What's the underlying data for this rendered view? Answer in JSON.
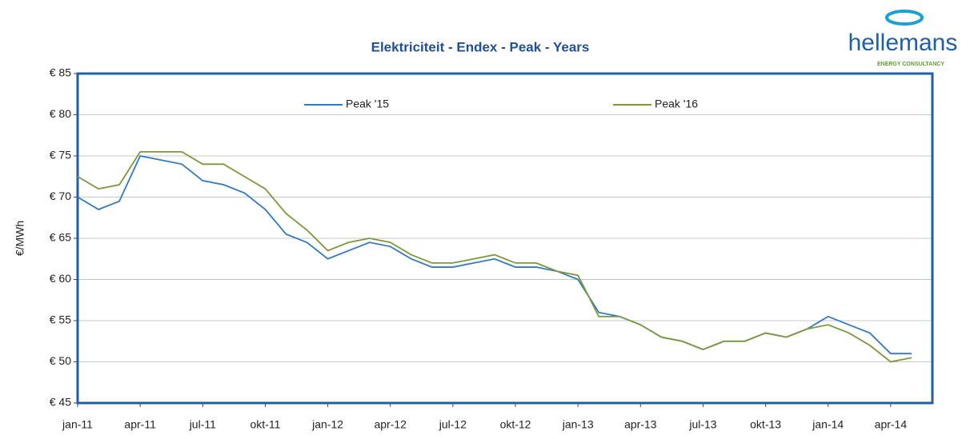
{
  "logo": {
    "name": "hellemans",
    "tagline": "ENERGY CONSULTANCY"
  },
  "chart_data": {
    "type": "line",
    "title": "Elektriciteit - Endex - Peak - Years",
    "y_label": "€/MWh",
    "categories": [
      "jan-11",
      null,
      null,
      "apr-11",
      null,
      null,
      "jul-11",
      null,
      null,
      "okt-11",
      null,
      null,
      "jan-12",
      null,
      null,
      "apr-12",
      null,
      null,
      "jul-12",
      null,
      null,
      "okt-12",
      null,
      null,
      "jan-13",
      null,
      null,
      "apr-13",
      null,
      null,
      "jul-13",
      null,
      null,
      "okt-13",
      null,
      null,
      "jan-14",
      null,
      null,
      "apr-14",
      null
    ],
    "series": [
      {
        "name": "Peak '15",
        "color": "#2e7bc4",
        "values": [
          70,
          68.5,
          69.5,
          75,
          74.5,
          74,
          72,
          71.5,
          70.5,
          68.5,
          65.5,
          64.5,
          62.5,
          63.5,
          64.5,
          64,
          62.5,
          61.5,
          61.5,
          62,
          62.5,
          61.5,
          61.5,
          61,
          60,
          56,
          55.5,
          54.5,
          53,
          52.5,
          51.5,
          52.5,
          52.5,
          53.5,
          53,
          54,
          55.5,
          54.5,
          53.5,
          51,
          51
        ]
      },
      {
        "name": "Peak '16",
        "color": "#7a9a3a",
        "values": [
          72.5,
          71,
          71.5,
          75.5,
          75.5,
          75.5,
          74,
          74,
          72.5,
          71,
          68,
          66,
          63.5,
          64.5,
          65,
          64.5,
          63,
          62,
          62,
          62.5,
          63,
          62,
          62,
          61,
          60.5,
          55.5,
          55.5,
          54.5,
          53,
          52.5,
          51.5,
          52.5,
          52.5,
          53.5,
          53,
          54,
          54.5,
          53.5,
          52,
          50,
          50.5
        ]
      }
    ],
    "ylim": [
      45,
      85
    ],
    "yticks": [
      {
        "value": 45,
        "label": "€ 45"
      },
      {
        "value": 50,
        "label": "€ 50"
      },
      {
        "value": 55,
        "label": "€ 55"
      },
      {
        "value": 60,
        "label": "€ 60"
      },
      {
        "value": 65,
        "label": "€ 65"
      },
      {
        "value": 70,
        "label": "€ 70"
      },
      {
        "value": 75,
        "label": "€ 75"
      },
      {
        "value": 80,
        "label": "€ 80"
      },
      {
        "value": 85,
        "label": "€ 85"
      }
    ],
    "grid": true
  }
}
